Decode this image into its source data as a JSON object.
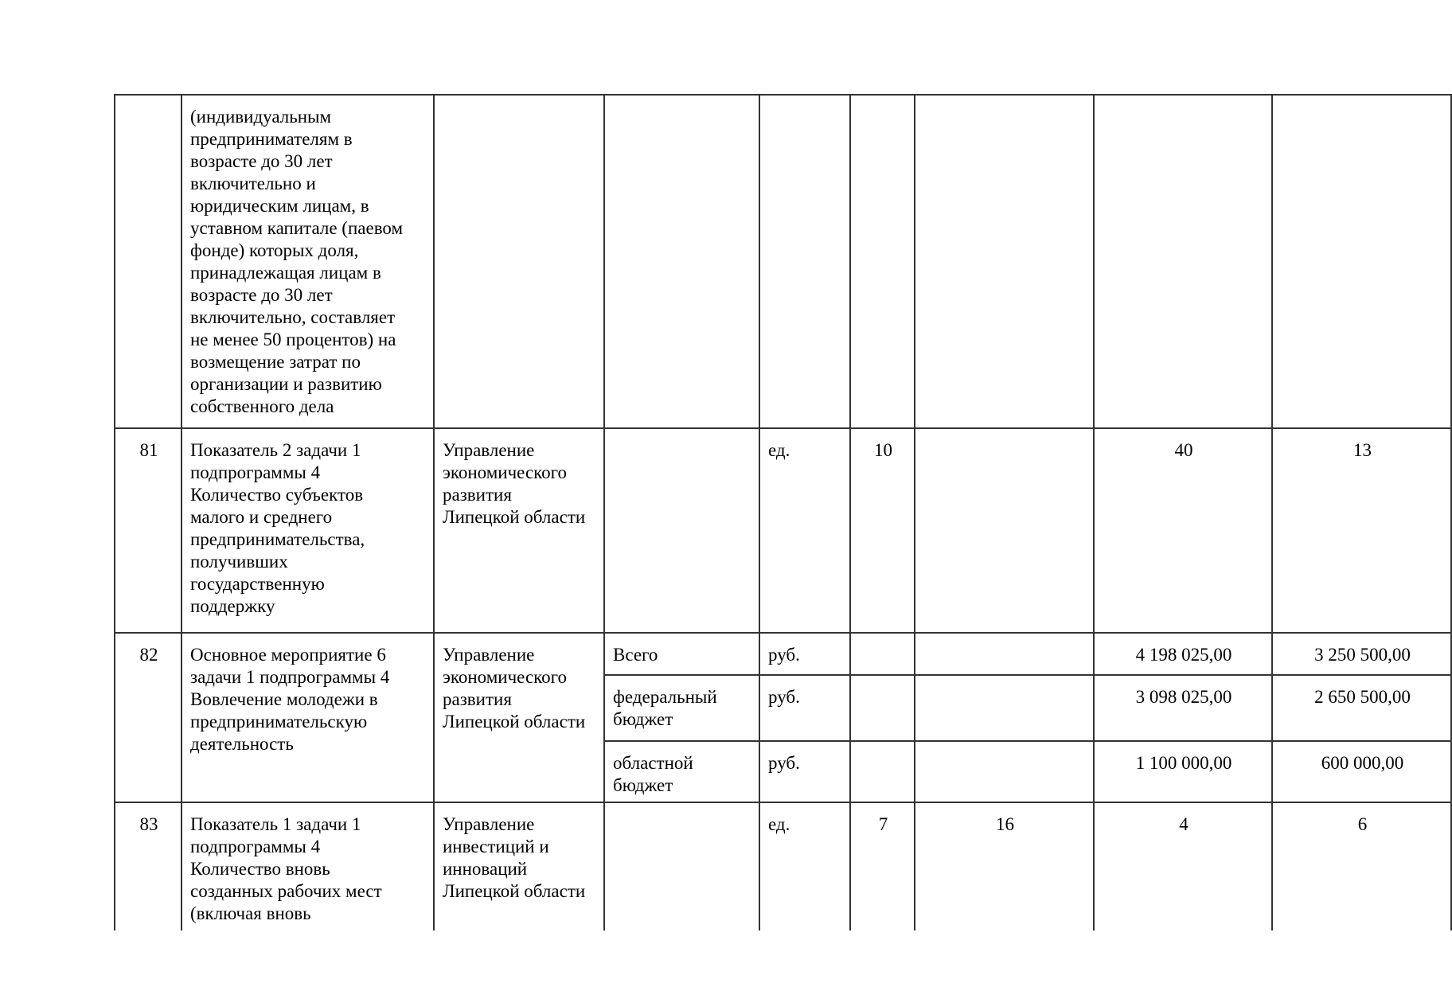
{
  "page": {
    "background": "#ffffff",
    "border_color": "#333333",
    "text_color": "#000000"
  },
  "table": {
    "rows": {
      "r80": {
        "num": "",
        "description": "(индивидуальным\nпредпринимателям в\nвозрасте до 30 лет\nвключительно и\nюридическим лицам, в\nуставном капитале (паевом\nфонде) которых доля,\nпринадлежащая лицам в\nвозрасте до 30 лет\nвключительно, составляет\nне менее 50 процентов) на\nвозмещение затрат по\nорганизации и развитию\nсобственного дела"
      },
      "r81": {
        "num": "81",
        "description": "Показатель 2 задачи 1\nподпрограммы 4\nКоличество субъектов\nмалого и среднего\nпредпринимательства,\nполучивших\nгосударственную\nподдержку",
        "executor": "Управление\nэкономического\nразвития\nЛипецкой области",
        "budget_type": "",
        "unit": "ед.",
        "v1": "10",
        "v2": "",
        "v3": "40",
        "v4": "13"
      },
      "r82": {
        "num": "82",
        "description": "Основное мероприятие 6\nзадачи 1 подпрограммы 4\nВовлечение молодежи в\nпредпринимательскую\nдеятельность",
        "executor": "Управление\nэкономического\nразвития\nЛипецкой области",
        "sub": [
          {
            "budget_type": "Всего",
            "unit": "руб.",
            "v1": "",
            "v2": "",
            "v3": "4 198 025,00",
            "v4": "3 250 500,00"
          },
          {
            "budget_type": "федеральный\nбюджет",
            "unit": "руб.",
            "v1": "",
            "v2": "",
            "v3": "3 098 025,00",
            "v4": "2 650 500,00"
          },
          {
            "budget_type": "областной\nбюджет",
            "unit": "руб.",
            "v1": "",
            "v2": "",
            "v3": "1 100 000,00",
            "v4": "600 000,00"
          }
        ]
      },
      "r83": {
        "num": "83",
        "description": "Показатель 1 задачи 1\nподпрограммы 4\nКоличество вновь\nсозданных рабочих мест\n(включая вновь",
        "executor": "Управление\nинвестиций и\nинноваций\nЛипецкой области",
        "budget_type": "",
        "unit": "ед.",
        "v1": "7",
        "v2": "16",
        "v3": "4",
        "v4": "6"
      }
    }
  }
}
